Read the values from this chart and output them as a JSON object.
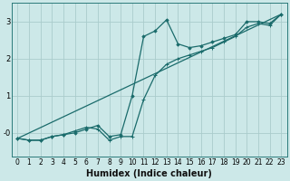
{
  "xlabel": "Humidex (Indice chaleur)",
  "bg_color": "#cce8e8",
  "grid_color": "#aacccc",
  "line_color": "#1a6b6b",
  "line1_y": [
    -0.15,
    -0.2,
    -0.2,
    -0.1,
    -0.05,
    0.0,
    0.1,
    0.2,
    -0.1,
    -0.05,
    1.0,
    2.6,
    2.75,
    3.05,
    2.4,
    2.3,
    2.35,
    2.45,
    2.55,
    2.65,
    3.0,
    3.0,
    2.95,
    3.2
  ],
  "line2_y": [
    -0.15,
    -0.2,
    -0.2,
    -0.1,
    -0.05,
    0.05,
    0.15,
    0.1,
    -0.2,
    -0.1,
    -0.1,
    0.9,
    1.55,
    1.85,
    2.0,
    2.1,
    2.2,
    2.3,
    2.45,
    2.6,
    2.85,
    2.95,
    2.9,
    3.2
  ],
  "line3_x": [
    0,
    23
  ],
  "line3_y": [
    -0.15,
    3.2
  ],
  "xlim": [
    -0.5,
    23.5
  ],
  "ylim": [
    -0.65,
    3.5
  ],
  "xticks": [
    0,
    1,
    2,
    3,
    4,
    5,
    6,
    7,
    8,
    9,
    10,
    11,
    12,
    13,
    14,
    15,
    16,
    17,
    18,
    19,
    20,
    21,
    22,
    23
  ],
  "yticks": [
    0,
    1,
    2,
    3
  ],
  "ytick_labels": [
    "-0",
    "1",
    "2",
    "3"
  ],
  "tick_fontsize": 5.5,
  "xlabel_fontsize": 7
}
